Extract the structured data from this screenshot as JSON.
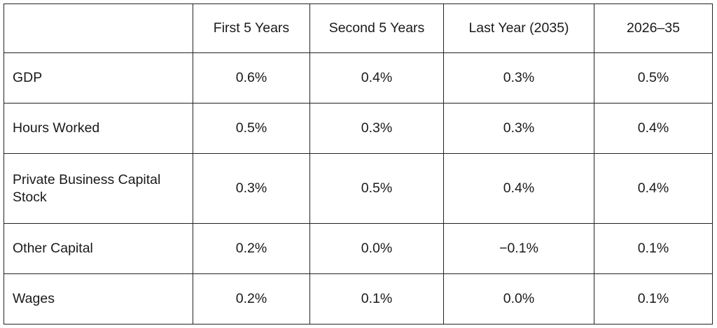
{
  "table": {
    "corner": "",
    "columns": [
      "First 5 Years",
      "Second 5 Years",
      "Last Year (2035)",
      "2026–35"
    ],
    "rows": [
      {
        "label": "GDP",
        "values": [
          "0.6%",
          "0.4%",
          "0.3%",
          "0.5%"
        ]
      },
      {
        "label": "Hours Worked",
        "values": [
          "0.5%",
          "0.3%",
          "0.3%",
          "0.4%"
        ]
      },
      {
        "label": "Private Business Capital Stock",
        "values": [
          "0.3%",
          "0.5%",
          "0.4%",
          "0.4%"
        ]
      },
      {
        "label": "Other Capital",
        "values": [
          "0.2%",
          "0.0%",
          "−0.1%",
          "0.1%"
        ]
      },
      {
        "label": "Wages",
        "values": [
          "0.2%",
          "0.1%",
          "0.0%",
          "0.1%"
        ]
      }
    ]
  },
  "chart_data": {
    "type": "table",
    "columns": [
      "First 5 Years",
      "Second 5 Years",
      "Last Year (2035)",
      "2026–35"
    ],
    "rows": [
      {
        "label": "GDP",
        "values": [
          "0.6%",
          "0.4%",
          "0.3%",
          "0.5%"
        ]
      },
      {
        "label": "Hours Worked",
        "values": [
          "0.5%",
          "0.3%",
          "0.3%",
          "0.4%"
        ]
      },
      {
        "label": "Private Business Capital Stock",
        "values": [
          "0.3%",
          "0.5%",
          "0.4%",
          "0.4%"
        ]
      },
      {
        "label": "Other Capital",
        "values": [
          "0.2%",
          "0.0%",
          "−0.1%",
          "0.1%"
        ]
      },
      {
        "label": "Wages",
        "values": [
          "0.2%",
          "0.1%",
          "0.0%",
          "0.1%"
        ]
      }
    ]
  }
}
